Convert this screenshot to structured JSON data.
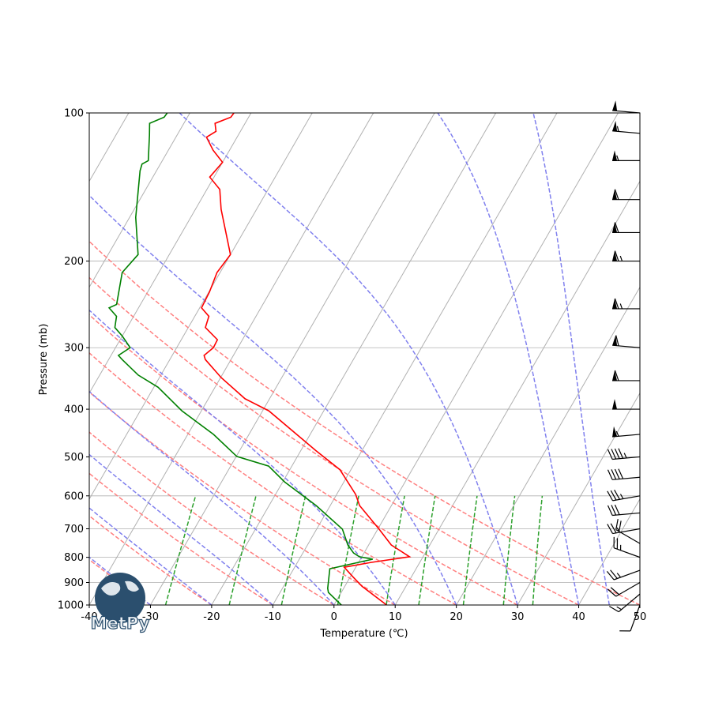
{
  "chart_data": {
    "type": "skewt",
    "xlabel": "Temperature (℃)",
    "ylabel": "Pressure (mb)",
    "xlim": [
      -40,
      50
    ],
    "ylim": [
      1000,
      100
    ],
    "xticks": [
      -40,
      -30,
      -20,
      -10,
      0,
      10,
      20,
      30,
      40,
      50
    ],
    "yticks": [
      100,
      200,
      300,
      400,
      500,
      600,
      700,
      800,
      900,
      1000
    ],
    "log_y": true,
    "grid": true,
    "skew_deg": 30,
    "series": [
      {
        "color": "red",
        "x": [
          8.6,
          2.8,
          0.4,
          -1.9,
          2.1,
          7.8,
          3.7,
          0.2,
          -5.2,
          -6.9,
          -11.8,
          -17.6,
          -29.0,
          -34.0,
          -39.9,
          -44.2,
          -44.8,
          -44.0,
          -44.1,
          -47.2,
          -47.7,
          -49.7,
          -49.9,
          -50.5,
          -50.0,
          -55.8,
          -57.9,
          -60.7,
          -60.0,
          -62.7,
          -65.0,
          -64.0,
          -64.9,
          -62.9,
          -62.8
        ],
        "values": [
          1000,
          916,
          876,
          838,
          819,
          798,
          755,
          701,
          628,
          596,
          531,
          485,
          403,
          381,
          345,
          317,
          311,
          300,
          289,
          273,
          259,
          249,
          231,
          211,
          194,
          157,
          143,
          135,
          126,
          119,
          112,
          109,
          105,
          102,
          100
        ]
      },
      {
        "color": "green",
        "x": [
          1.2,
          -2.1,
          -2.6,
          -4.1,
          2.0,
          -0.4,
          -1.7,
          -3.4,
          -5.8,
          -12.3,
          -19.7,
          -23.8,
          -29.9,
          -35.8,
          -43.2,
          -49.3,
          -53.7,
          -57.8,
          -58.8,
          -57.6,
          -60.0,
          -62.0,
          -62.8,
          -64.8,
          -63.9,
          -66.0,
          -65.1,
          -69.0,
          -72.7,
          -73.0,
          -72.3,
          -74.5,
          -75.6,
          -73.8,
          -73.7
        ],
        "values": [
          1000,
          943,
          925,
          844,
          807,
          798,
          784,
          755,
          701,
          628,
          562,
          522,
          499,
          450,
          403,
          361,
          341,
          317,
          311,
          300,
          284,
          273,
          259,
          249,
          245,
          211,
          194,
          163,
          131,
          127,
          125,
          111,
          105,
          102,
          100
        ]
      }
    ],
    "isotherms": {
      "color": "#b0b0b0",
      "values": [
        -80,
        -70,
        -60,
        -50,
        -40,
        -30,
        -20,
        -10,
        0,
        10,
        20,
        30,
        40,
        50
      ]
    },
    "dry_adiabats": {
      "color": "#ff8080",
      "values": [
        -40,
        -30,
        -20,
        -10,
        0,
        10,
        20,
        30,
        40,
        50
      ]
    },
    "moist_adiabats": {
      "color": "#8080ee",
      "values": [
        -40,
        -30,
        -20,
        -10,
        0,
        10,
        20,
        30,
        40,
        45
      ]
    },
    "mixing_ratios": {
      "color": "#2ca02c",
      "values": [
        0.0004,
        0.001,
        0.002,
        0.004,
        0.007,
        0.01,
        0.016,
        0.024,
        0.032
      ]
    },
    "barbs": {
      "color": "black",
      "pressure": [
        1000,
        950,
        900,
        850,
        800,
        750,
        700,
        650,
        600,
        550,
        500,
        450,
        400,
        350,
        300,
        250,
        200,
        175,
        150,
        125,
        110,
        100
      ],
      "speed": [
        10,
        15,
        20,
        25,
        25,
        20,
        25,
        30,
        35,
        40,
        45,
        55,
        50,
        60,
        60,
        65,
        65,
        60,
        60,
        55,
        55,
        50
      ],
      "direction": [
        200,
        230,
        240,
        250,
        290,
        300,
        260,
        265,
        260,
        265,
        265,
        265,
        270,
        270,
        275,
        270,
        270,
        270,
        270,
        270,
        275,
        275
      ]
    },
    "logo": "MetPy"
  }
}
